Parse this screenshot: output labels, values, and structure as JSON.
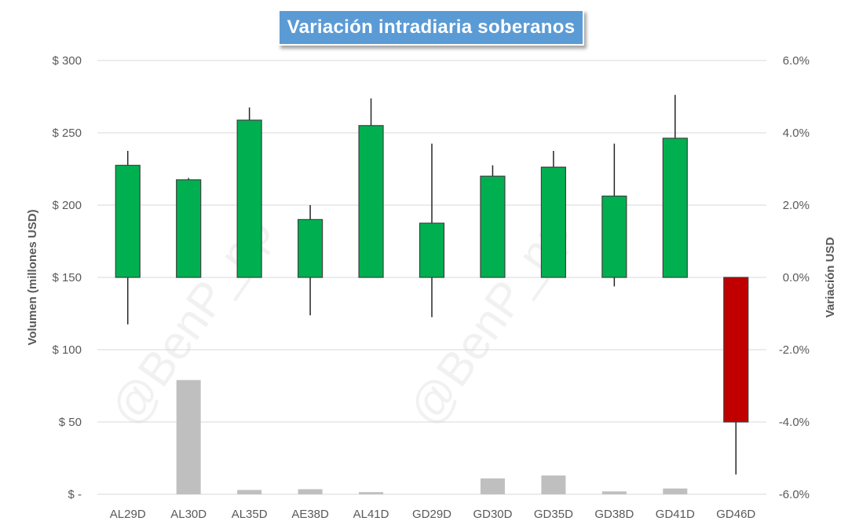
{
  "chart_data": {
    "type": "candlestick",
    "title": "Variación intradiaria soberanos",
    "watermark": "@BenP_np",
    "categories": [
      "AL29D",
      "AL30D",
      "AL35D",
      "AE38D",
      "AL41D",
      "GD29D",
      "GD30D",
      "GD35D",
      "GD38D",
      "GD41D",
      "GD46D"
    ],
    "left_axis": {
      "label": "Volumen (millones USD)",
      "ylim": [
        0,
        300
      ],
      "ticks": [
        0,
        50,
        100,
        150,
        200,
        250,
        300
      ],
      "tick_labels": [
        "$ -",
        "$ 50",
        "$ 100",
        "$ 150",
        "$ 200",
        "$ 250",
        "$ 300"
      ]
    },
    "right_axis": {
      "label": "Variación USD",
      "ylim": [
        -6,
        6
      ],
      "ticks": [
        -6,
        -4,
        -2,
        0,
        2,
        4,
        6
      ],
      "tick_labels": [
        "-6.0%",
        "-4.0%",
        "-2.0%",
        "0.0%",
        "2.0%",
        "4.0%",
        "6.0%"
      ]
    },
    "volume_series": {
      "values": [
        0,
        79,
        3,
        3.5,
        1.5,
        0,
        11,
        13,
        2,
        4,
        0
      ],
      "color": "#bfbfbf"
    },
    "variation_series": {
      "open": [
        0,
        0,
        0,
        0,
        0,
        0,
        0,
        0,
        0,
        0,
        0
      ],
      "close": [
        3.1,
        2.7,
        4.35,
        1.6,
        4.2,
        1.5,
        2.8,
        3.05,
        2.25,
        3.85,
        -4.0
      ],
      "high": [
        3.5,
        2.75,
        4.7,
        2.0,
        4.95,
        3.7,
        3.1,
        3.5,
        3.7,
        5.05,
        0.0
      ],
      "low": [
        -1.3,
        0,
        0,
        -1.05,
        0,
        -1.1,
        0,
        0,
        -0.25,
        0,
        -5.45
      ],
      "up_color": "#00b050",
      "down_color": "#c00000"
    },
    "grid": true
  }
}
